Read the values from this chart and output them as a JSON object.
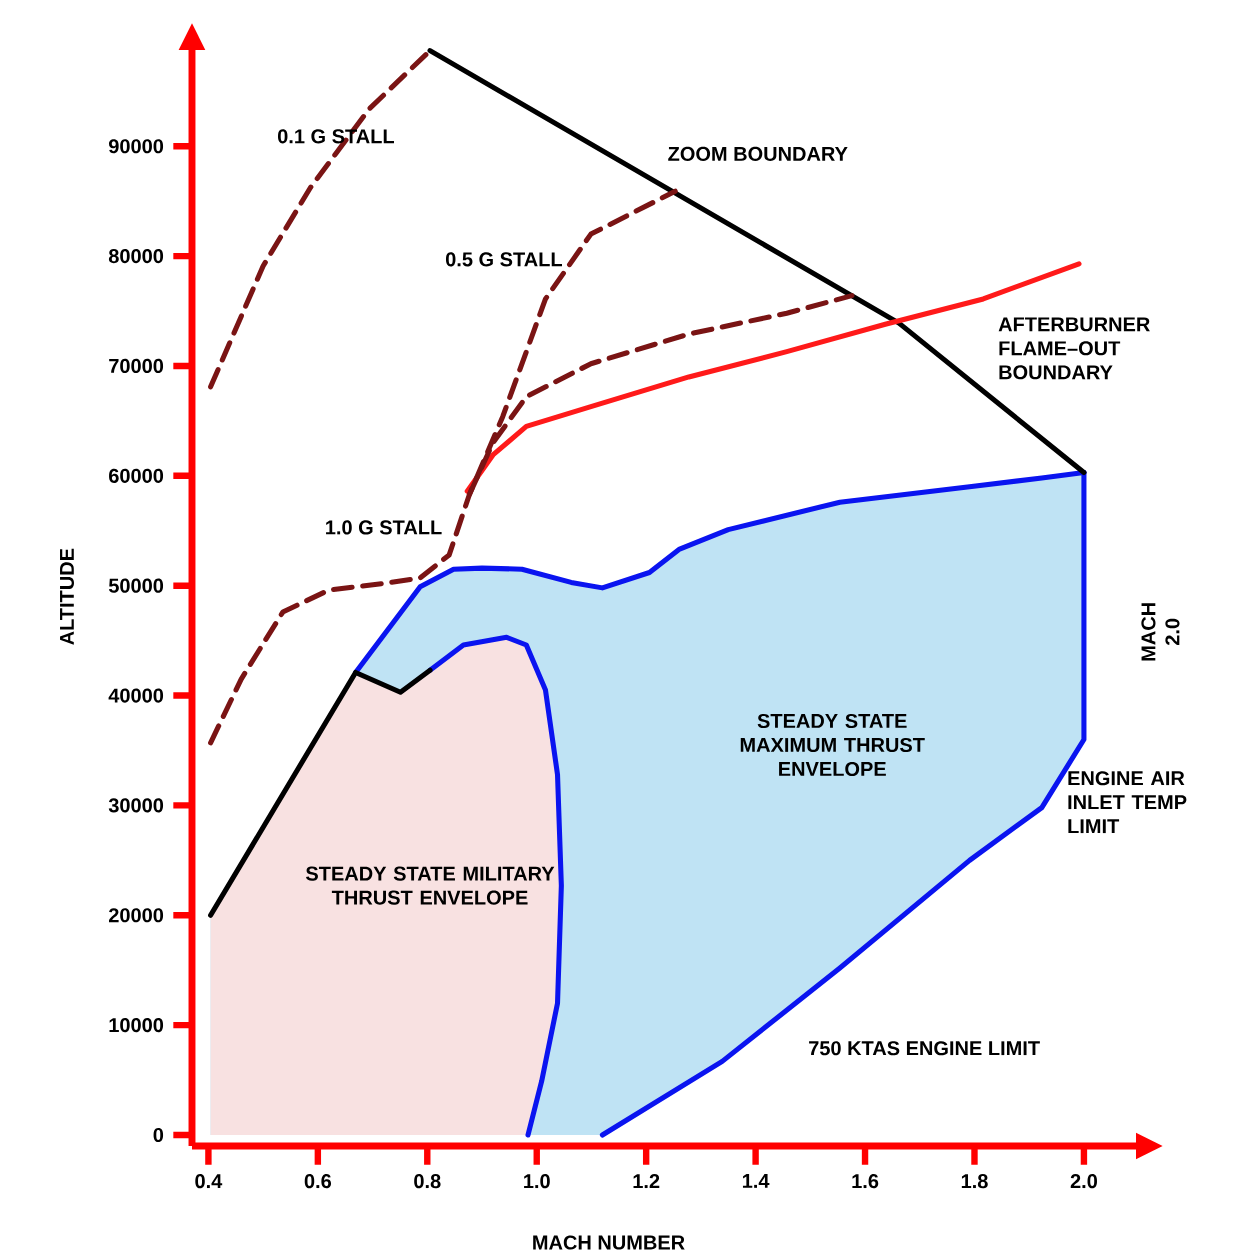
{
  "chart_data": {
    "type": "line",
    "xlabel": "MACH NUMBER",
    "ylabel": "ALTITUDE",
    "xlim": [
      0.37,
      2.1
    ],
    "ylim": [
      -1000,
      99000
    ],
    "xticks": [
      0.4,
      0.6,
      0.8,
      {
        "value": 1.0,
        "label": "1.0"
      },
      1.2,
      1.4,
      1.6,
      1.8,
      {
        "value": 2.0,
        "label": "2.0"
      }
    ],
    "yticks": [
      0,
      10000,
      20000,
      30000,
      40000,
      50000,
      60000,
      70000,
      80000,
      90000
    ],
    "series": [
      {
        "color": "#0a14f0",
        "x": [
          0.669,
          0.787,
          0.848,
          0.9,
          0.973,
          1.063,
          1.12,
          1.206,
          1.26,
          1.35,
          1.554,
          1.791,
          1.923,
          2.0
        ],
        "values": [
          42100,
          49900,
          51500,
          51600,
          51500,
          50300,
          49800,
          51200,
          53300,
          55100,
          57600,
          59000,
          59800,
          60300
        ]
      },
      {
        "color": "#0a14f0",
        "x": [
          1.12,
          1.339,
          1.554,
          1.791,
          1.923,
          2.0,
          2.0
        ],
        "values": [
          0,
          6700,
          15200,
          25000,
          29800,
          36000,
          60300
        ]
      },
      {
        "color": "#0a14f0",
        "x": [
          0.805,
          0.866,
          0.945,
          0.981,
          1.016,
          1.038,
          1.045,
          1.038,
          1.009,
          0.984
        ],
        "values": [
          42300,
          44600,
          45300,
          44600,
          40500,
          32800,
          22700,
          12000,
          4900,
          0
        ]
      },
      {
        "color": "#000000",
        "x": [
          0.404,
          0.669,
          0.751,
          0.805
        ],
        "values": [
          20000,
          42100,
          40300,
          42300
        ]
      },
      {
        "color": "#000000",
        "x": [
          0.805,
          1.662,
          2.0
        ],
        "values": [
          98700,
          73900,
          60300
        ]
      },
      {
        "color": "#ff1a1a",
        "x": [
          0.873,
          0.92,
          0.981,
          1.099,
          1.278,
          1.457,
          1.637,
          1.816,
          1.991
        ],
        "values": [
          58600,
          61900,
          64500,
          66300,
          69000,
          71300,
          73800,
          76100,
          79300
        ]
      },
      {
        "color": "#7a1414",
        "line_style": "dashed",
        "x": [
          0.404,
          0.5,
          0.586,
          0.694,
          0.805
        ],
        "values": [
          68100,
          79100,
          86200,
          93400,
          98700
        ]
      },
      {
        "color": "#7a1414",
        "line_style": "dashed",
        "x": [
          0.404,
          0.46,
          0.536,
          0.62,
          0.72,
          0.787,
          0.84,
          0.877,
          0.938,
          1.016,
          1.099,
          1.253
        ],
        "values": [
          35700,
          41500,
          47600,
          49600,
          50200,
          50700,
          52800,
          58300,
          65400,
          76100,
          82000,
          85900
        ]
      },
      {
        "color": "#7a1414",
        "line_style": "dashed",
        "x": [
          0.877,
          0.92,
          0.981,
          1.099,
          1.278,
          1.457,
          1.576
        ],
        "values": [
          58300,
          63000,
          67200,
          70200,
          72900,
          74800,
          76400
        ]
      }
    ],
    "annotations": [
      {
        "text": "0.1 G STALL",
        "x": 0.633,
        "y": 90900
      },
      "ZOOM BOUNDARY",
      "0.5 G STALL",
      "AFTERBURNER FLAME–OUT BOUNDARY",
      "1.0 G STALL",
      {
        "text": "MACH 2.0",
        "x": 2.0,
        "y": 45800
      },
      "STEADY STATE MAXIMUM THRUST ENVELOPE",
      "ENGINE AIR INLET TEMP LIMIT",
      "STEADY STATE MILITARY THRUST ENVELOPE",
      "750 KTAS ENGINE LIMIT"
    ]
  }
}
